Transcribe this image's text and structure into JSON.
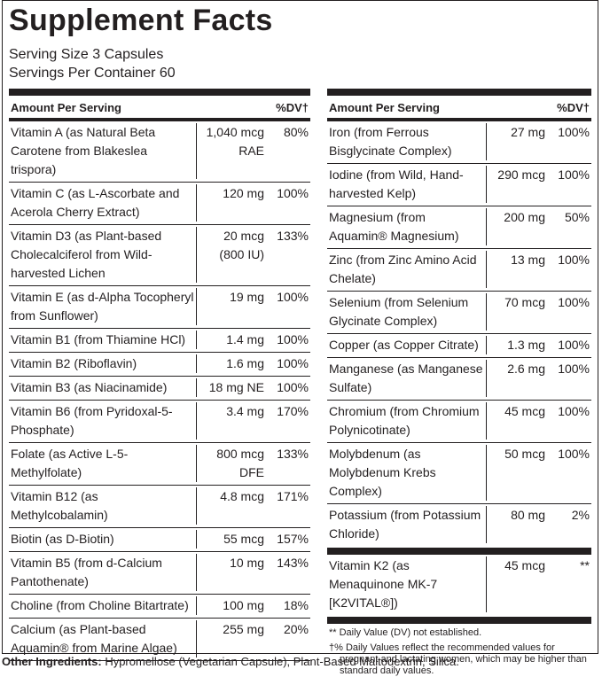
{
  "title": "Supplement Facts",
  "serving_size": "Serving Size 3 Capsules",
  "servings_per_container": "Servings Per Container 60",
  "left": {
    "header": {
      "amount": "Amount Per Serving",
      "dv": "%DV†"
    },
    "rows": [
      {
        "name": "Vitamin A (as Natural Beta Carotene from Blakeslea trispora)",
        "amount": "1,040 mcg RAE",
        "dv": "80%"
      },
      {
        "name": "Vitamin C (as L-Ascorbate and Acerola Cherry Extract)",
        "amount": "120 mg",
        "dv": "100%"
      },
      {
        "name": "Vitamin D3 (as Plant-based Cholecalciferol from Wild-harvested Lichen",
        "amount": "20 mcg (800 IU)",
        "dv": "133%"
      },
      {
        "name": "Vitamin E (as d-Alpha Tocopheryl from Sunflower)",
        "amount": "19 mg",
        "dv": "100%"
      },
      {
        "name": "Vitamin B1 (from Thiamine HCl)",
        "amount": "1.4 mg",
        "dv": "100%"
      },
      {
        "name": "Vitamin B2 (Riboflavin)",
        "amount": "1.6 mg",
        "dv": "100%"
      },
      {
        "name": "Vitamin B3 (as Niacinamide)",
        "amount": "18 mg NE",
        "dv": "100%"
      },
      {
        "name": "Vitamin B6 (from Pyridoxal-5-Phosphate)",
        "amount": "3.4 mg",
        "dv": "170%"
      },
      {
        "name": "Folate (as Active L-5-Methylfolate)",
        "amount": "800 mcg DFE",
        "dv": "133%"
      },
      {
        "name": "Vitamin B12 (as Methylcobalamin)",
        "amount": "4.8 mcg",
        "dv": "171%"
      },
      {
        "name": "Biotin (as D-Biotin)",
        "amount": "55 mcg",
        "dv": "157%"
      },
      {
        "name": "Vitamin B5 (from d-Calcium Pantothenate)",
        "amount": "10 mg",
        "dv": "143%"
      },
      {
        "name": "Choline (from Choline Bitartrate)",
        "amount": "100 mg",
        "dv": "18%"
      },
      {
        "name": "Calcium (as Plant-based Aquamin® from Marine Algae)",
        "amount": "255 mg",
        "dv": "20%"
      }
    ]
  },
  "right": {
    "header": {
      "amount": "Amount Per Serving",
      "dv": "%DV†"
    },
    "rows": [
      {
        "name": "Iron (from Ferrous Bisglycinate Complex)",
        "amount": "27 mg",
        "dv": "100%"
      },
      {
        "name": "Iodine (from Wild, Hand-harvested Kelp)",
        "amount": "290 mcg",
        "dv": "100%"
      },
      {
        "name": "Magnesium (from Aquamin® Magnesium)",
        "amount": "200 mg",
        "dv": "50%"
      },
      {
        "name": "Zinc (from Zinc Amino Acid Chelate)",
        "amount": "13 mg",
        "dv": "100%"
      },
      {
        "name": "Selenium (from Selenium Glycinate Complex)",
        "amount": "70 mcg",
        "dv": "100%"
      },
      {
        "name": "Copper (as Copper Citrate)",
        "amount": "1.3 mg",
        "dv": "100%"
      },
      {
        "name": "Manganese (as Manganese Sulfate)",
        "amount": "2.6 mg",
        "dv": "100%"
      },
      {
        "name": "Chromium (from Chromium Polynicotinate)",
        "amount": "45 mcg",
        "dv": "100%"
      },
      {
        "name": "Molybdenum (as Molybdenum Krebs Complex)",
        "amount": "50 mcg",
        "dv": "100%"
      },
      {
        "name": "Potassium (from Potassium Chloride)",
        "amount": "80 mg",
        "dv": "2%"
      }
    ],
    "extra_rows": [
      {
        "name": "Vitamin K2 (as Menaquinone MK-7 [K2VITAL®])",
        "amount": "45 mcg",
        "dv": "**"
      }
    ]
  },
  "footnotes": [
    "** Daily Value (DV) not established.",
    "†% Daily Values reflect the recommended values for pregnant and lactating women, which may be higher than standard daily values."
  ],
  "other_ingredients": {
    "label": "Other Ingredients:",
    "text": "Hypromellose (Vegetarian Capsule), Plant-Based Maltodextrin, Silica."
  }
}
